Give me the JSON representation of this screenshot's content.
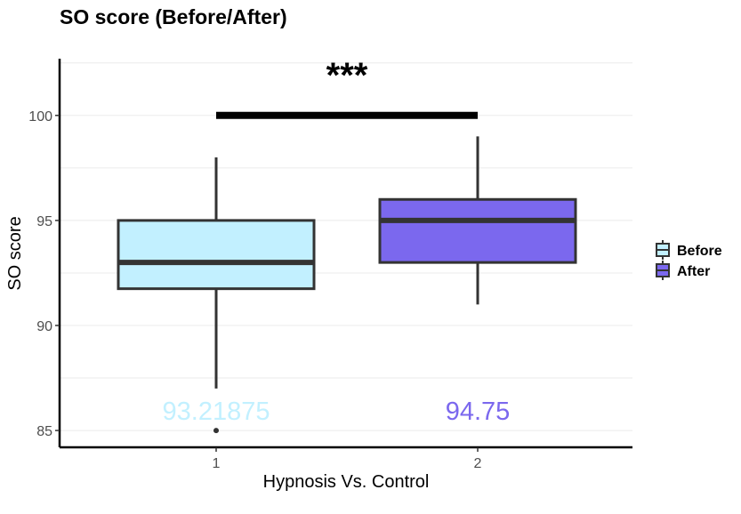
{
  "chart_data": {
    "type": "box",
    "title": "SO score (Before/After)",
    "xlabel": "Hypnosis Vs. Control",
    "ylabel": "SO score",
    "categories": [
      "1",
      "2"
    ],
    "ylim": [
      84.2,
      102.7
    ],
    "yticks": [
      85,
      90,
      95,
      100
    ],
    "grid": "horizontal",
    "legend": {
      "position": "right",
      "entries": [
        "Before",
        "After"
      ]
    },
    "series": [
      {
        "name": "Before",
        "color": "#c2f0ff",
        "category": "1",
        "whisker_low": 87,
        "q1": 91.75,
        "median": 93,
        "q3": 95,
        "whisker_high": 98,
        "outliers": [
          85
        ],
        "mean_label": "93.21875",
        "label_color": "#c2f0ff"
      },
      {
        "name": "After",
        "color": "#7b68ee",
        "category": "2",
        "whisker_low": 91,
        "q1": 93,
        "median": 95,
        "q3": 96,
        "whisker_high": 99,
        "outliers": [],
        "mean_label": "94.75",
        "label_color": "#7b68ee"
      }
    ],
    "significance": {
      "label": "***",
      "y": 100,
      "from": "1",
      "to": "2"
    }
  }
}
